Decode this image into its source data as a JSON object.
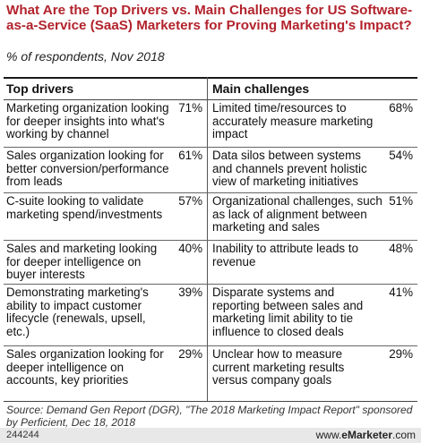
{
  "chart_data": {
    "type": "table",
    "title": "What Are the Top Drivers vs. Main Challenges for US Software-as-a-Service (SaaS) Marketers for Proving Marketing's Impact?",
    "subtitle": "% of respondents, Nov 2018",
    "columns": [
      "Top drivers",
      "Main challenges"
    ],
    "rows": [
      {
        "driver": "Marketing organization looking for deeper insights into what's working by channel",
        "driver_pct": "71%",
        "challenge": "Limited time/resources to accurately measure marketing impact",
        "challenge_pct": "68%"
      },
      {
        "driver": "Sales organization looking for better conversion/performance from leads",
        "driver_pct": "61%",
        "challenge": "Data silos between systems and channels prevent holistic view of marketing initiatives",
        "challenge_pct": "54%"
      },
      {
        "driver": "C-suite looking to validate marketing spend/investments",
        "driver_pct": "57%",
        "challenge": "Organizational challenges, such as lack of alignment between marketing and sales",
        "challenge_pct": "51%"
      },
      {
        "driver": "Sales and marketing looking for deeper intelligence on buyer interests",
        "driver_pct": "40%",
        "challenge": "Inability to attribute leads to revenue",
        "challenge_pct": "48%"
      },
      {
        "driver": "Demonstrating marketing's ability to impact customer lifecycle (renewals, upsell, etc.)",
        "driver_pct": "39%",
        "challenge": "Disparate systems and reporting between sales and marketing limit ability to tie influence to closed deals",
        "challenge_pct": "41%"
      },
      {
        "driver": "Sales organization looking for deeper intelligence on accounts, key priorities",
        "driver_pct": "29%",
        "challenge": "Unclear how to measure current marketing results versus company goals",
        "challenge_pct": "29%"
      }
    ],
    "source": "Source: Demand Gen Report (DGR), \"The 2018 Marketing Impact Report\" sponsored by Perficient, Dec 18, 2018"
  },
  "footer": {
    "id": "244244",
    "brand_prefix": "www.",
    "brand_name": "eMarketer",
    "brand_suffix": ".com"
  }
}
